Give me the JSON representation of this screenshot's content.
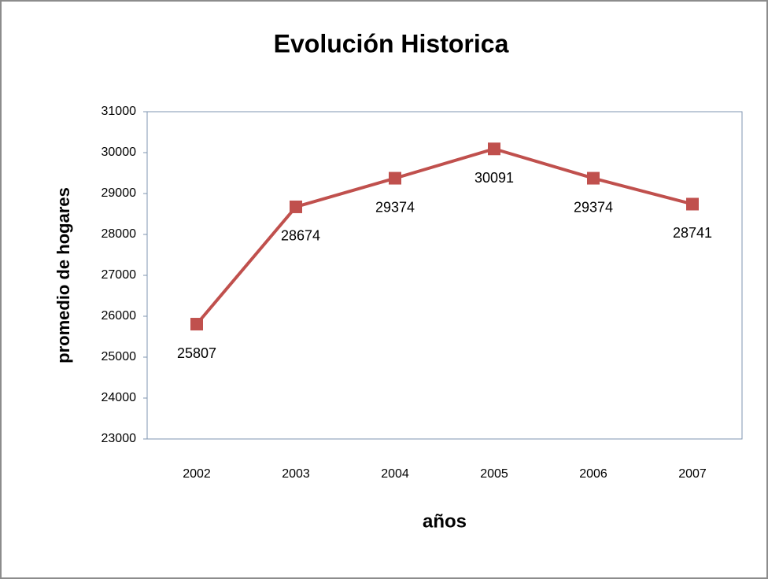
{
  "chart_data": {
    "type": "line",
    "title": "Evolución Historica",
    "x_label": "años",
    "y_label": "promedio de hogares",
    "categories": [
      "2002",
      "2003",
      "2004",
      "2005",
      "2006",
      "2007"
    ],
    "series": [
      {
        "name": "promedio de hogares",
        "color": "#c0504d",
        "values": [
          25807,
          28674,
          29374,
          30091,
          29374,
          28741
        ]
      }
    ],
    "ylim": [
      23000,
      31000
    ],
    "yticks": [
      23000,
      24000,
      25000,
      26000,
      27000,
      28000,
      29000,
      30000,
      31000
    ],
    "grid": false,
    "legend": false
  }
}
